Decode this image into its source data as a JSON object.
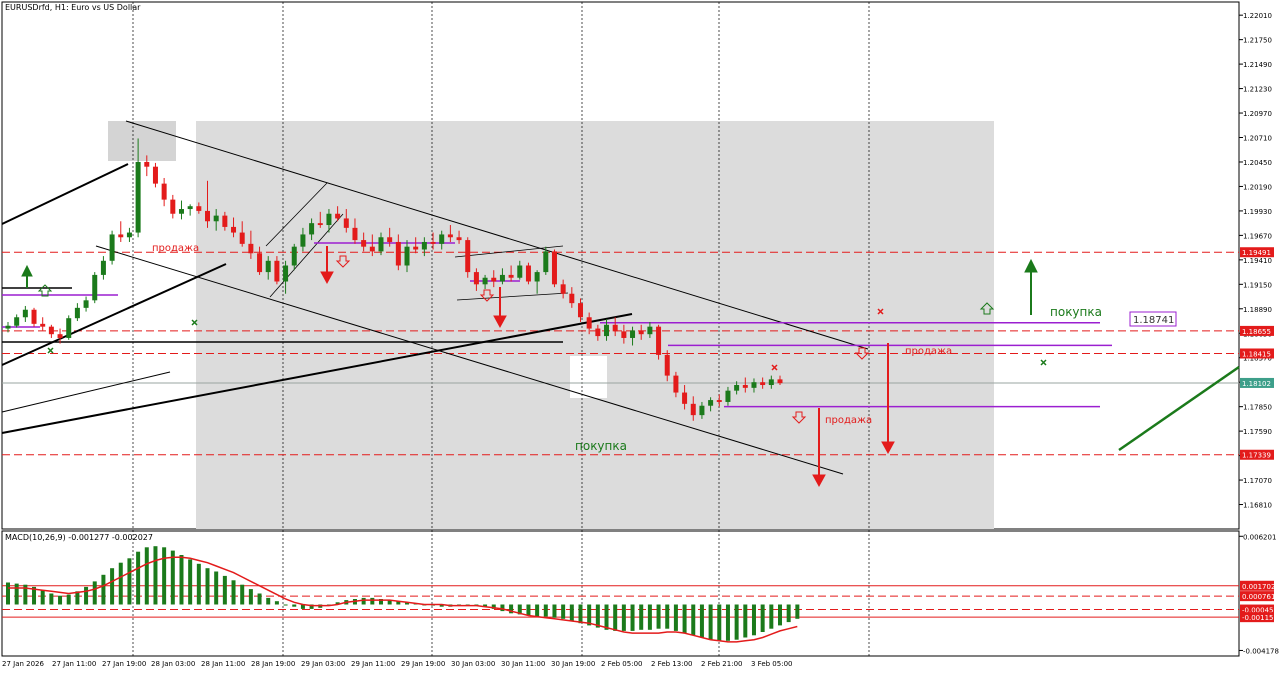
{
  "header": {
    "symbol_title": "EURUSDrfd, H1:  Euro vs US Dollar",
    "macd_title": "MACD(10,26,9) -0.001277 -0.002027"
  },
  "colors": {
    "bull": "#1b7a1b",
    "bear": "#e31b1b",
    "zone": "#dcdcdc",
    "level_red": "#e31b1b",
    "level_purple": "#9b1fd0",
    "trend_black": "#000000",
    "macd_signal": "#e31b1b",
    "price_badge": "#3d9f8a"
  },
  "annotations": {
    "sell_1": "продажа",
    "sell_2": "продажа",
    "sell_3": "продажа",
    "buy_1": "покупка",
    "buy_2": "покупка",
    "level_box": "1.18741"
  },
  "chart_data": [
    {
      "type": "candlestick",
      "title": "EURUSDrfd, H1:  Euro vs US Dollar",
      "ylim": [
        1.1655,
        1.2215
      ],
      "y_ticks": [
        "1.22010",
        "1.21750",
        "1.21490",
        "1.21230",
        "1.20970",
        "1.20710",
        "1.20450",
        "1.20190",
        "1.19930",
        "1.19670",
        "1.19410",
        "1.19150",
        "1.18890",
        "1.18630",
        "1.18370",
        "1.18110",
        "1.17850",
        "1.17590",
        "1.17330",
        "1.17070",
        "1.16810"
      ],
      "x_ticks": [
        "27 Jan 2026",
        "27 Jan 11:00",
        "27 Jan 19:00",
        "28 Jan 03:00",
        "28 Jan 11:00",
        "28 Jan 19:00",
        "29 Jan 03:00",
        "29 Jan 11:00",
        "29 Jan 19:00",
        "30 Jan 03:00",
        "30 Jan 11:00",
        "30 Jan 19:00",
        "2 Feb 05:00",
        "2 Feb 13:00",
        "2 Feb 21:00",
        "3 Feb 05:00"
      ],
      "price_labels": [
        {
          "value": "1.19491",
          "price": 1.19491,
          "color": "#e31b1b"
        },
        {
          "value": "1.18655",
          "price": 1.18655,
          "color": "#e31b1b"
        },
        {
          "value": "1.18415",
          "price": 1.18415,
          "color": "#e31b1b"
        },
        {
          "value": "1.18102",
          "price": 1.18102,
          "color": "#3d9f8a"
        },
        {
          "value": "1.17339",
          "price": 1.17339,
          "color": "#e31b1b"
        }
      ],
      "current_price": 1.18102,
      "red_dashed_levels": [
        1.19491,
        1.18655,
        1.18415,
        1.17339
      ],
      "purple_levels": [
        {
          "price": 1.18741,
          "from": "2 Feb 05:00",
          "to": "3 Feb 19:00"
        },
        {
          "price": 1.18501,
          "from": "2 Feb 10:00",
          "to": "3 Feb 20:00"
        },
        {
          "price": 1.17851,
          "from": "2 Feb 23:00",
          "to": "3 Feb 19:00"
        }
      ],
      "candles": [
        {
          "o": 1.1868,
          "h": 1.1875,
          "l": 1.1864,
          "c": 1.1871
        },
        {
          "o": 1.1871,
          "h": 1.1883,
          "l": 1.1869,
          "c": 1.188
        },
        {
          "o": 1.188,
          "h": 1.1892,
          "l": 1.1875,
          "c": 1.1888
        },
        {
          "o": 1.1888,
          "h": 1.189,
          "l": 1.187,
          "c": 1.1873
        },
        {
          "o": 1.1873,
          "h": 1.188,
          "l": 1.1866,
          "c": 1.187
        },
        {
          "o": 1.187,
          "h": 1.1872,
          "l": 1.1858,
          "c": 1.1862
        },
        {
          "o": 1.1862,
          "h": 1.1868,
          "l": 1.1852,
          "c": 1.1858
        },
        {
          "o": 1.1858,
          "h": 1.1882,
          "l": 1.1856,
          "c": 1.1879
        },
        {
          "o": 1.1879,
          "h": 1.1895,
          "l": 1.1876,
          "c": 1.189
        },
        {
          "o": 1.189,
          "h": 1.1902,
          "l": 1.1886,
          "c": 1.1898
        },
        {
          "o": 1.1898,
          "h": 1.1928,
          "l": 1.1895,
          "c": 1.1925
        },
        {
          "o": 1.1925,
          "h": 1.1945,
          "l": 1.192,
          "c": 1.194
        },
        {
          "o": 1.194,
          "h": 1.1972,
          "l": 1.1936,
          "c": 1.1968
        },
        {
          "o": 1.1968,
          "h": 1.1982,
          "l": 1.196,
          "c": 1.1965
        },
        {
          "o": 1.1965,
          "h": 1.1975,
          "l": 1.196,
          "c": 1.197
        },
        {
          "o": 1.197,
          "h": 1.207,
          "l": 1.1965,
          "c": 1.2045
        },
        {
          "o": 1.2045,
          "h": 1.2052,
          "l": 1.203,
          "c": 1.204
        },
        {
          "o": 1.204,
          "h": 1.2044,
          "l": 1.2018,
          "c": 1.2022
        },
        {
          "o": 1.2022,
          "h": 1.2028,
          "l": 1.1998,
          "c": 1.2005
        },
        {
          "o": 1.2005,
          "h": 1.201,
          "l": 1.1985,
          "c": 1.199
        },
        {
          "o": 1.199,
          "h": 1.2004,
          "l": 1.1984,
          "c": 1.1995
        },
        {
          "o": 1.1995,
          "h": 1.2,
          "l": 1.1988,
          "c": 1.1998
        },
        {
          "o": 1.1998,
          "h": 1.2002,
          "l": 1.199,
          "c": 1.1993
        },
        {
          "o": 1.1993,
          "h": 1.2025,
          "l": 1.1975,
          "c": 1.1982
        },
        {
          "o": 1.1982,
          "h": 1.1995,
          "l": 1.1972,
          "c": 1.1988
        },
        {
          "o": 1.1988,
          "h": 1.1992,
          "l": 1.1972,
          "c": 1.1976
        },
        {
          "o": 1.1976,
          "h": 1.1986,
          "l": 1.1965,
          "c": 1.197
        },
        {
          "o": 1.197,
          "h": 1.1982,
          "l": 1.1955,
          "c": 1.1958
        },
        {
          "o": 1.1958,
          "h": 1.1972,
          "l": 1.1942,
          "c": 1.1948
        },
        {
          "o": 1.1948,
          "h": 1.1955,
          "l": 1.1925,
          "c": 1.1928
        },
        {
          "o": 1.1928,
          "h": 1.1945,
          "l": 1.192,
          "c": 1.194
        },
        {
          "o": 1.194,
          "h": 1.1945,
          "l": 1.1915,
          "c": 1.1918
        },
        {
          "o": 1.1918,
          "h": 1.194,
          "l": 1.1905,
          "c": 1.1935
        },
        {
          "o": 1.1935,
          "h": 1.1958,
          "l": 1.193,
          "c": 1.1955
        },
        {
          "o": 1.1955,
          "h": 1.1975,
          "l": 1.195,
          "c": 1.1968
        },
        {
          "o": 1.1968,
          "h": 1.1985,
          "l": 1.1962,
          "c": 1.198
        },
        {
          "o": 1.198,
          "h": 1.1992,
          "l": 1.1975,
          "c": 1.1978
        },
        {
          "o": 1.1978,
          "h": 1.1995,
          "l": 1.197,
          "c": 1.199
        },
        {
          "o": 1.199,
          "h": 1.1998,
          "l": 1.1982,
          "c": 1.1985
        },
        {
          "o": 1.1985,
          "h": 1.1995,
          "l": 1.197,
          "c": 1.1975
        },
        {
          "o": 1.1975,
          "h": 1.1985,
          "l": 1.1958,
          "c": 1.1962
        },
        {
          "o": 1.1962,
          "h": 1.197,
          "l": 1.195,
          "c": 1.1955
        },
        {
          "o": 1.1955,
          "h": 1.1968,
          "l": 1.1945,
          "c": 1.195
        },
        {
          "o": 1.195,
          "h": 1.197,
          "l": 1.1946,
          "c": 1.1965
        },
        {
          "o": 1.1965,
          "h": 1.1975,
          "l": 1.1955,
          "c": 1.196
        },
        {
          "o": 1.196,
          "h": 1.1968,
          "l": 1.193,
          "c": 1.1935
        },
        {
          "o": 1.1935,
          "h": 1.1962,
          "l": 1.1928,
          "c": 1.1955
        },
        {
          "o": 1.1955,
          "h": 1.1965,
          "l": 1.1948,
          "c": 1.1952
        },
        {
          "o": 1.1952,
          "h": 1.1965,
          "l": 1.1945,
          "c": 1.196
        },
        {
          "o": 1.196,
          "h": 1.197,
          "l": 1.1952,
          "c": 1.1958
        },
        {
          "o": 1.1958,
          "h": 1.1972,
          "l": 1.1952,
          "c": 1.1968
        },
        {
          "o": 1.1968,
          "h": 1.1978,
          "l": 1.196,
          "c": 1.1965
        },
        {
          "o": 1.1965,
          "h": 1.1972,
          "l": 1.1958,
          "c": 1.1962
        },
        {
          "o": 1.1962,
          "h": 1.1965,
          "l": 1.1922,
          "c": 1.1928
        },
        {
          "o": 1.1928,
          "h": 1.1932,
          "l": 1.1908,
          "c": 1.1915
        },
        {
          "o": 1.1915,
          "h": 1.1925,
          "l": 1.191,
          "c": 1.1922
        },
        {
          "o": 1.1922,
          "h": 1.193,
          "l": 1.1912,
          "c": 1.1918
        },
        {
          "o": 1.1918,
          "h": 1.1932,
          "l": 1.1915,
          "c": 1.1925
        },
        {
          "o": 1.1925,
          "h": 1.1935,
          "l": 1.1918,
          "c": 1.1922
        },
        {
          "o": 1.1922,
          "h": 1.194,
          "l": 1.192,
          "c": 1.1935
        },
        {
          "o": 1.1935,
          "h": 1.1938,
          "l": 1.1915,
          "c": 1.1918
        },
        {
          "o": 1.1918,
          "h": 1.193,
          "l": 1.1905,
          "c": 1.1928
        },
        {
          "o": 1.1928,
          "h": 1.1955,
          "l": 1.1925,
          "c": 1.195
        },
        {
          "o": 1.195,
          "h": 1.1952,
          "l": 1.1912,
          "c": 1.1915
        },
        {
          "o": 1.1915,
          "h": 1.192,
          "l": 1.19,
          "c": 1.1905
        },
        {
          "o": 1.1905,
          "h": 1.1912,
          "l": 1.189,
          "c": 1.1895
        },
        {
          "o": 1.1895,
          "h": 1.19,
          "l": 1.1875,
          "c": 1.188
        },
        {
          "o": 1.188,
          "h": 1.1885,
          "l": 1.1862,
          "c": 1.1868
        },
        {
          "o": 1.1868,
          "h": 1.1872,
          "l": 1.1855,
          "c": 1.186
        },
        {
          "o": 1.186,
          "h": 1.1878,
          "l": 1.1855,
          "c": 1.1872
        },
        {
          "o": 1.1872,
          "h": 1.188,
          "l": 1.186,
          "c": 1.1865
        },
        {
          "o": 1.1865,
          "h": 1.1872,
          "l": 1.1852,
          "c": 1.1858
        },
        {
          "o": 1.1858,
          "h": 1.187,
          "l": 1.185,
          "c": 1.1866
        },
        {
          "o": 1.1866,
          "h": 1.1872,
          "l": 1.1856,
          "c": 1.1862
        },
        {
          "o": 1.1862,
          "h": 1.1875,
          "l": 1.1858,
          "c": 1.187
        },
        {
          "o": 1.187,
          "h": 1.1872,
          "l": 1.1835,
          "c": 1.184
        },
        {
          "o": 1.184,
          "h": 1.1845,
          "l": 1.1812,
          "c": 1.1818
        },
        {
          "o": 1.1818,
          "h": 1.1822,
          "l": 1.1795,
          "c": 1.18
        },
        {
          "o": 1.18,
          "h": 1.1808,
          "l": 1.1782,
          "c": 1.1788
        },
        {
          "o": 1.1788,
          "h": 1.1796,
          "l": 1.177,
          "c": 1.1776
        },
        {
          "o": 1.1776,
          "h": 1.179,
          "l": 1.1772,
          "c": 1.1786
        },
        {
          "o": 1.1786,
          "h": 1.1795,
          "l": 1.178,
          "c": 1.1792
        },
        {
          "o": 1.1792,
          "h": 1.1798,
          "l": 1.1785,
          "c": 1.179
        },
        {
          "o": 1.179,
          "h": 1.1806,
          "l": 1.1786,
          "c": 1.1802
        },
        {
          "o": 1.1802,
          "h": 1.1812,
          "l": 1.1798,
          "c": 1.1808
        },
        {
          "o": 1.1808,
          "h": 1.1816,
          "l": 1.18,
          "c": 1.1805
        },
        {
          "o": 1.1805,
          "h": 1.1815,
          "l": 1.18,
          "c": 1.1811
        },
        {
          "o": 1.1811,
          "h": 1.1816,
          "l": 1.1804,
          "c": 1.1808
        },
        {
          "o": 1.1808,
          "h": 1.1818,
          "l": 1.1804,
          "c": 1.1814
        },
        {
          "o": 1.1814,
          "h": 1.1818,
          "l": 1.1808,
          "c": 1.181
        }
      ]
    },
    {
      "type": "bar",
      "title": "MACD(10,26,9) -0.001277 -0.002027",
      "ylim": [
        -0.0045,
        0.0065
      ],
      "y_ticks": [
        "0.006201",
        "-0.004178"
      ],
      "price_labels": [
        {
          "value": "0.001702",
          "price": 0.001702
        },
        {
          "value": "0.000761",
          "price": 0.000761
        },
        {
          "value": "-0.000459",
          "price": -0.000459
        },
        {
          "value": "-0.001150",
          "price": -0.00115
        }
      ],
      "series": [
        {
          "name": "MACD",
          "values": [
            0.002,
            0.0019,
            0.0018,
            0.0016,
            0.0013,
            0.001,
            0.0008,
            0.0009,
            0.0012,
            0.0016,
            0.0021,
            0.0027,
            0.0033,
            0.0038,
            0.0042,
            0.0048,
            0.0052,
            0.0053,
            0.0052,
            0.0049,
            0.0045,
            0.0041,
            0.0037,
            0.0033,
            0.003,
            0.0026,
            0.0022,
            0.0018,
            0.0014,
            0.001,
            0.0006,
            0.0003,
            0.0,
            -0.0002,
            -0.0004,
            -0.0004,
            -0.0003,
            -0.0001,
            0.0002,
            0.0004,
            0.0005,
            0.0006,
            0.0006,
            0.0005,
            0.0004,
            0.0003,
            0.0002,
            0.0001,
            0.0,
            -0.0001,
            -0.0002,
            -0.0002,
            -0.0001,
            -0.0001,
            -0.0001,
            -0.0002,
            -0.0004,
            -0.0006,
            -0.0008,
            -0.0009,
            -0.001,
            -0.0011,
            -0.0011,
            -0.0012,
            -0.0013,
            -0.0015,
            -0.0017,
            -0.0019,
            -0.0021,
            -0.0023,
            -0.0024,
            -0.0024,
            -0.0024,
            -0.0023,
            -0.0023,
            -0.0022,
            -0.0022,
            -0.0024,
            -0.0026,
            -0.0028,
            -0.003,
            -0.0032,
            -0.0033,
            -0.0033,
            -0.0032,
            -0.003,
            -0.0028,
            -0.0025,
            -0.0022,
            -0.0019,
            -0.0016,
            -0.0013
          ]
        },
        {
          "name": "Signal",
          "values": [
            0.0015,
            0.0015,
            0.0015,
            0.0014,
            0.0013,
            0.0012,
            0.0011,
            0.001,
            0.0011,
            0.0012,
            0.0014,
            0.0017,
            0.0021,
            0.0025,
            0.0029,
            0.0033,
            0.0037,
            0.004,
            0.0042,
            0.0043,
            0.0043,
            0.0042,
            0.004,
            0.0038,
            0.0035,
            0.0032,
            0.0029,
            0.0025,
            0.0021,
            0.0017,
            0.0013,
            0.0009,
            0.0005,
            0.0002,
            0.0,
            -0.0001,
            -0.0001,
            -0.0001,
            0.0,
            0.0002,
            0.0003,
            0.0004,
            0.0004,
            0.0004,
            0.0004,
            0.0003,
            0.0002,
            0.0001,
            0.0,
            0.0,
            0.0,
            -0.0001,
            -0.0001,
            -0.0001,
            -0.0001,
            -0.0002,
            -0.0003,
            -0.0004,
            -0.0006,
            -0.0008,
            -0.001,
            -0.0011,
            -0.0012,
            -0.0013,
            -0.0014,
            -0.0015,
            -0.0016,
            -0.0017,
            -0.0019,
            -0.0021,
            -0.0023,
            -0.0025,
            -0.0026,
            -0.0026,
            -0.0026,
            -0.0026,
            -0.0025,
            -0.0025,
            -0.0026,
            -0.0028,
            -0.003,
            -0.0032,
            -0.0033,
            -0.0034,
            -0.0034,
            -0.0033,
            -0.0032,
            -0.003,
            -0.0027,
            -0.0024,
            -0.0022,
            -0.002
          ]
        }
      ]
    }
  ]
}
